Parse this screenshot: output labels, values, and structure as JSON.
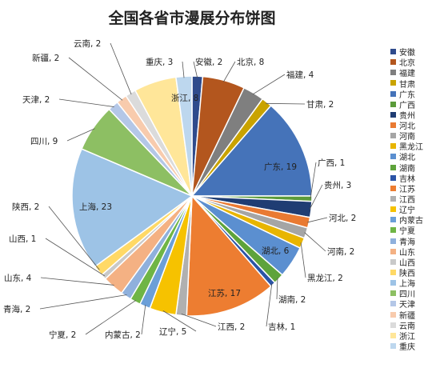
{
  "chart_data": {
    "type": "pie",
    "title": "全国各省市漫展分布饼图",
    "legend_position": "right",
    "slices": [
      {
        "label": "安徽",
        "value": 2,
        "color": "#2f4b8c",
        "display": "安徽, 2"
      },
      {
        "label": "北京",
        "value": 8,
        "color": "#b3561e",
        "display": "北京, 8"
      },
      {
        "label": "福建",
        "value": 4,
        "color": "#7f7f7f",
        "display": "福建, 4"
      },
      {
        "label": "甘肃",
        "value": 2,
        "color": "#c9a300",
        "display": "甘肃, 2"
      },
      {
        "label": "广东",
        "value": 19,
        "color": "#4573b9",
        "display": "广东, 19"
      },
      {
        "label": "广西",
        "value": 1,
        "color": "#5b9b3a",
        "display": "广西, 1"
      },
      {
        "label": "贵州",
        "value": 3,
        "color": "#1f3d73",
        "display": "贵州, 3"
      },
      {
        "label": "河北",
        "value": 2,
        "color": "#e97a32",
        "display": "河北, 2"
      },
      {
        "label": "河南",
        "value": 2,
        "color": "#a5a5a5",
        "display": "河南, 2"
      },
      {
        "label": "黑龙江",
        "value": 2,
        "color": "#e8b500",
        "display": "黑龙江, 2"
      },
      {
        "label": "湖北",
        "value": 6,
        "color": "#5b8fd0",
        "display": "湖北, 6"
      },
      {
        "label": "湖南",
        "value": 2,
        "color": "#5ea33b",
        "display": "湖南, 2"
      },
      {
        "label": "吉林",
        "value": 1,
        "color": "#2b54a6",
        "display": "吉林, 1"
      },
      {
        "label": "江苏",
        "value": 17,
        "color": "#ed7d31",
        "display": "江苏, 17"
      },
      {
        "label": "江西",
        "value": 2,
        "color": "#b0b0b0",
        "display": "江西, 2"
      },
      {
        "label": "辽宁",
        "value": 5,
        "color": "#f6c200",
        "display": "辽宁, 5"
      },
      {
        "label": "内蒙古",
        "value": 2,
        "color": "#6b9fd8",
        "display": "内蒙古, 2"
      },
      {
        "label": "宁夏",
        "value": 2,
        "color": "#6fb545",
        "display": "宁夏, 2"
      },
      {
        "label": "青海",
        "value": 2,
        "color": "#8fb0dc",
        "display": "青海, 2"
      },
      {
        "label": "山东",
        "value": 4,
        "color": "#f4b183",
        "display": "山东, 4"
      },
      {
        "label": "山西",
        "value": 1,
        "color": "#c9c9c9",
        "display": "山西, 1"
      },
      {
        "label": "陕西",
        "value": 2,
        "color": "#ffd966",
        "display": "陕西, 2"
      },
      {
        "label": "上海",
        "value": 23,
        "color": "#9dc3e6",
        "display": "上海, 23"
      },
      {
        "label": "四川",
        "value": 9,
        "color": "#8dbf63",
        "display": "四川, 9"
      },
      {
        "label": "天津",
        "value": 2,
        "color": "#b4c7e7",
        "display": "天津, 2"
      },
      {
        "label": "新疆",
        "value": 2,
        "color": "#f8cbad",
        "display": "新疆, 2"
      },
      {
        "label": "云南",
        "value": 2,
        "color": "#dbdbdb",
        "display": "云南, 2"
      },
      {
        "label": "浙江",
        "value": 8,
        "color": "#ffe699",
        "display": "浙江, 8"
      },
      {
        "label": "重庆",
        "value": 3,
        "color": "#bdd7ee",
        "display": "重庆, 3"
      }
    ]
  }
}
